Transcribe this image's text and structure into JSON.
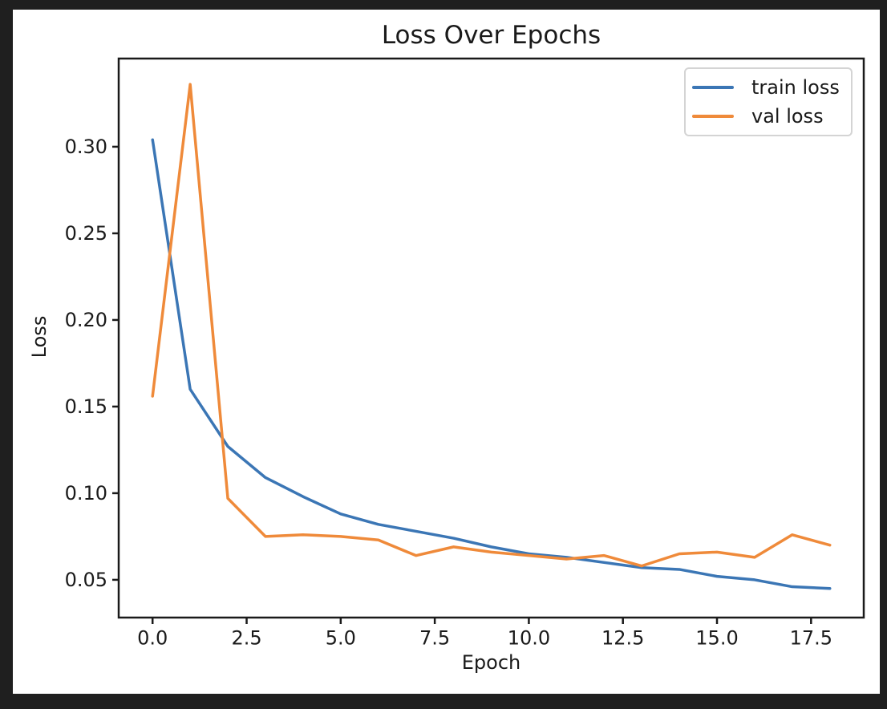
{
  "figure": {
    "page_background": "#1f1f1f",
    "background": "#ffffff",
    "axis_color": "#1a1a1a"
  },
  "chart_data": {
    "type": "line",
    "title": "Loss Over Epochs",
    "xlabel": "Epoch",
    "ylabel": "Loss",
    "grid": false,
    "legend_position": "upper right",
    "xlim": [
      -0.9,
      18.9
    ],
    "ylim": [
      0.0282,
      0.3509
    ],
    "xticks": [
      0,
      2.5,
      5,
      7.5,
      10,
      12.5,
      15,
      17.5
    ],
    "xtick_labels": [
      "0.0",
      "2.5",
      "5.0",
      "7.5",
      "10.0",
      "12.5",
      "15.0",
      "17.5"
    ],
    "yticks": [
      0.05,
      0.1,
      0.15,
      0.2,
      0.25,
      0.3
    ],
    "ytick_labels": [
      "0.05",
      "0.10",
      "0.15",
      "0.20",
      "0.25",
      "0.30"
    ],
    "x": [
      0,
      1,
      2,
      3,
      4,
      5,
      6,
      7,
      8,
      9,
      10,
      11,
      12,
      13,
      14,
      15,
      16,
      17,
      18
    ],
    "series": [
      {
        "name": "train loss",
        "color": "#3b76b5",
        "values": [
          0.304,
          0.16,
          0.127,
          0.109,
          0.098,
          0.088,
          0.082,
          0.078,
          0.074,
          0.069,
          0.065,
          0.063,
          0.06,
          0.057,
          0.056,
          0.052,
          0.05,
          0.046,
          0.045
        ]
      },
      {
        "name": "val loss",
        "color": "#ef8a3a",
        "values": [
          0.156,
          0.336,
          0.097,
          0.075,
          0.076,
          0.075,
          0.073,
          0.064,
          0.069,
          0.066,
          0.064,
          0.062,
          0.064,
          0.058,
          0.065,
          0.066,
          0.063,
          0.076,
          0.07
        ]
      }
    ]
  }
}
